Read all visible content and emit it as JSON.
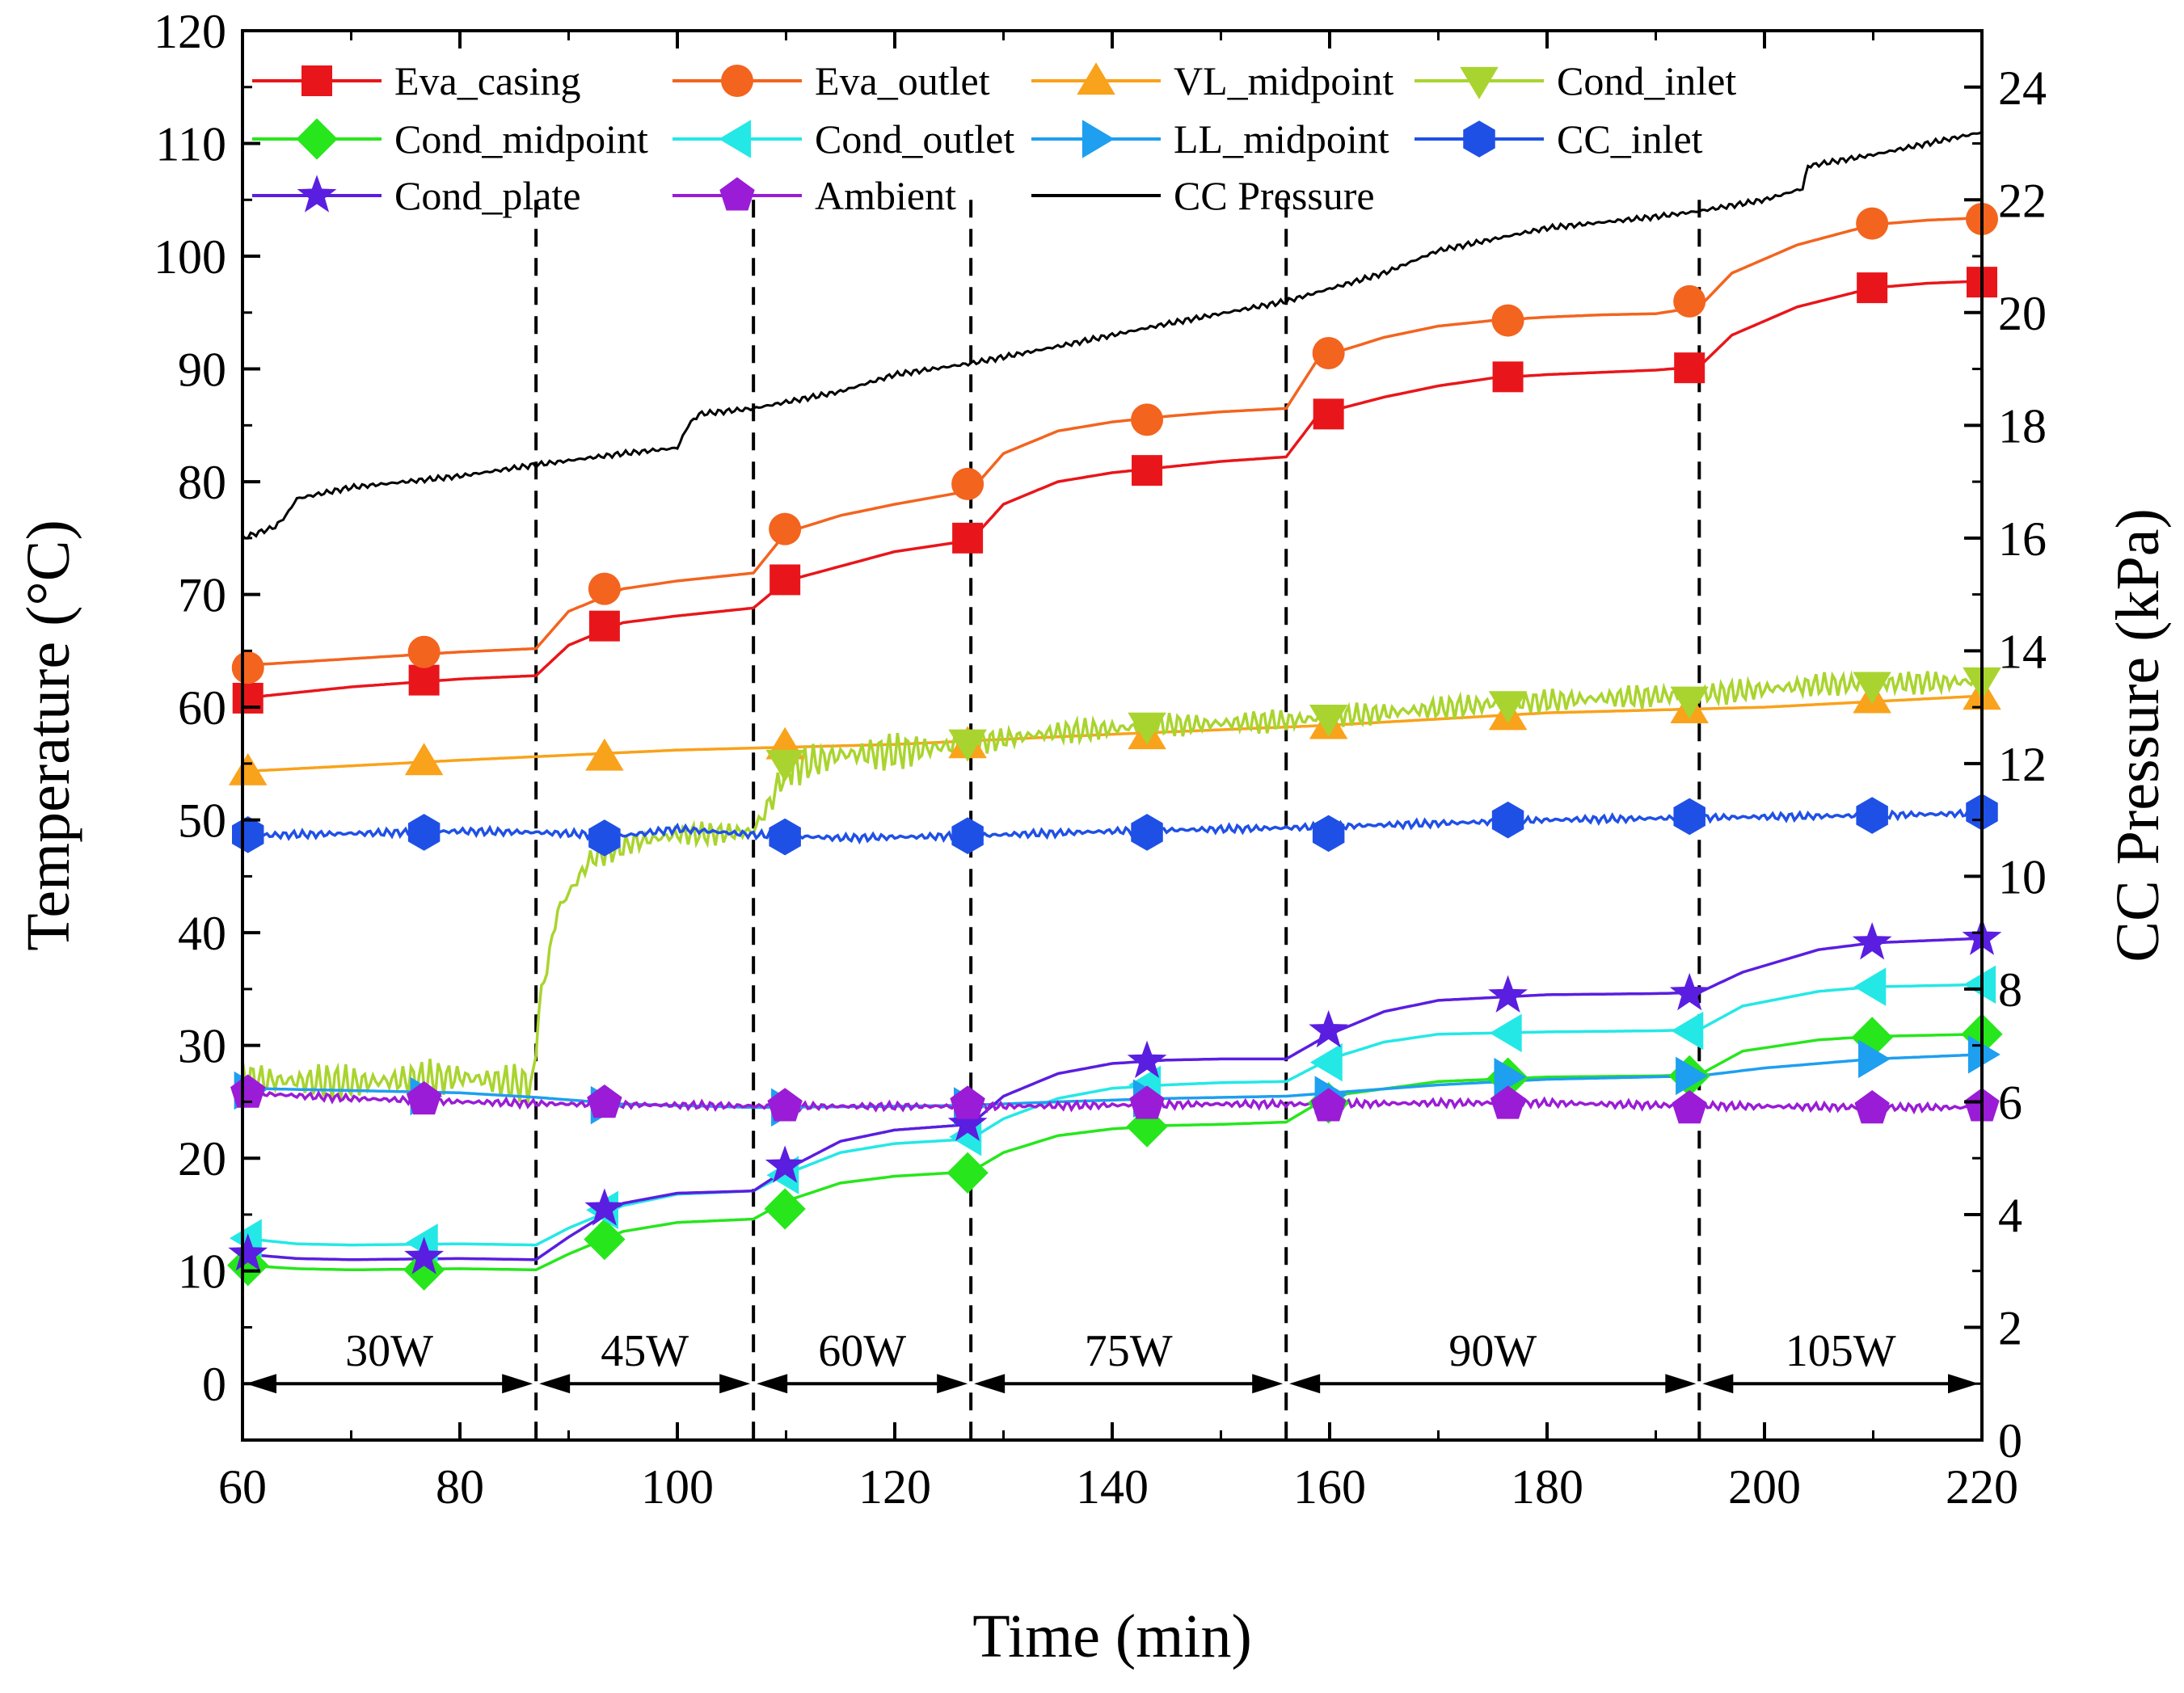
{
  "chart_data": {
    "type": "line",
    "xlabel": "Time (min)",
    "ylabel": "Temperature (°C)",
    "y2label": "CC Pressure (kPa)",
    "xlim": [
      60,
      220
    ],
    "ylim": [
      -5,
      120
    ],
    "y2lim": [
      0,
      25
    ],
    "xticks": [
      60,
      80,
      100,
      120,
      140,
      160,
      180,
      200,
      220
    ],
    "yticks": [
      0,
      10,
      20,
      30,
      40,
      50,
      60,
      70,
      80,
      90,
      100,
      110,
      120
    ],
    "y2ticks": [
      0,
      2,
      4,
      6,
      8,
      10,
      12,
      14,
      16,
      18,
      20,
      22,
      24
    ],
    "grid": false,
    "legend_position": "top",
    "phase_boundaries": [
      87,
      107,
      127,
      156,
      194
    ],
    "phases": [
      {
        "label": "30W",
        "start": 60,
        "end": 87
      },
      {
        "label": "45W",
        "start": 87,
        "end": 107
      },
      {
        "label": "60W",
        "start": 107,
        "end": 127
      },
      {
        "label": "75W",
        "start": 127,
        "end": 156
      },
      {
        "label": "90W",
        "start": 156,
        "end": 194
      },
      {
        "label": "105W",
        "start": 194,
        "end": 220
      }
    ],
    "marker_x": [
      60.5,
      76.7,
      93.3,
      109.9,
      126.7,
      143.2,
      159.9,
      176.4,
      193.1,
      209.9,
      220
    ],
    "series": [
      {
        "name": "Eva_casing",
        "color": "#e8161b",
        "marker": "square",
        "axis": "left",
        "x": [
          60,
          70,
          80,
          87,
          90,
          95,
          100,
          107,
          110,
          115,
          120,
          127,
          130,
          135,
          140,
          145,
          150,
          156,
          159,
          165,
          170,
          175,
          180,
          185,
          190,
          194,
          197,
          203,
          210,
          215,
          220
        ],
        "y": [
          60.8,
          61.8,
          62.5,
          62.8,
          65.5,
          67.5,
          68.1,
          68.8,
          71.2,
          72.5,
          73.8,
          74.8,
          78.0,
          80.0,
          80.8,
          81.3,
          81.8,
          82.2,
          86.0,
          87.5,
          88.5,
          89.2,
          89.5,
          89.7,
          89.9,
          90.2,
          93.0,
          95.5,
          97.2,
          97.6,
          97.8
        ],
        "marker_y": [
          60.8,
          62.4,
          67.2,
          71.3,
          75.0,
          81.0,
          86.0,
          89.3,
          90.1,
          97.2,
          97.7
        ]
      },
      {
        "name": "Eva_outlet",
        "color": "#f3641f",
        "marker": "circle",
        "axis": "left",
        "x": [
          60,
          70,
          80,
          87,
          90,
          95,
          100,
          107,
          110,
          115,
          120,
          127,
          130,
          135,
          140,
          145,
          150,
          156,
          159,
          165,
          170,
          175,
          180,
          185,
          190,
          194,
          197,
          203,
          210,
          215,
          220
        ],
        "y": [
          63.7,
          64.3,
          64.9,
          65.2,
          68.5,
          70.5,
          71.2,
          71.9,
          75.5,
          77.0,
          78.0,
          79.2,
          82.5,
          84.5,
          85.3,
          85.8,
          86.2,
          86.5,
          91.0,
          92.8,
          93.8,
          94.3,
          94.6,
          94.8,
          94.9,
          95.5,
          98.5,
          101.0,
          102.8,
          103.2,
          103.4
        ],
        "marker_y": [
          63.5,
          64.9,
          70.5,
          75.8,
          79.8,
          85.5,
          91.4,
          94.3,
          96.0,
          102.9,
          103.3
        ]
      },
      {
        "name": "VL_midpoint",
        "color": "#f9a21b",
        "marker": "triangle-up",
        "axis": "left",
        "x": [
          60,
          80,
          100,
          120,
          140,
          160,
          180,
          200,
          220
        ],
        "y": [
          54.3,
          55.3,
          56.2,
          56.7,
          57.6,
          58.4,
          59.5,
          60.0,
          61.0
        ],
        "marker_y": [
          54.3,
          55.2,
          55.6,
          56.6,
          56.7,
          57.5,
          58.4,
          59.2,
          59.8,
          60.7,
          61.0
        ]
      },
      {
        "name": "Cond_inlet",
        "color": "#a9d42f",
        "marker": "triangle-down",
        "axis": "left",
        "x": [
          60,
          70,
          80,
          86.8,
          87.2,
          89,
          92,
          96,
          100,
          104,
          107,
          108.5,
          110,
          115,
          120,
          127,
          135,
          145,
          156,
          165,
          175,
          185,
          195,
          205,
          220
        ],
        "y": [
          27.0,
          26.7,
          27.2,
          26.5,
          33.0,
          42.0,
          46.5,
          48.0,
          48.7,
          48.8,
          49.0,
          51.5,
          54.5,
          55.8,
          56.0,
          56.8,
          57.8,
          58.4,
          58.8,
          59.5,
          60.3,
          60.8,
          61.2,
          62.0,
          62.3
        ],
        "marker_y": [
          null,
          null,
          null,
          55.0,
          56.8,
          58.3,
          59.0,
          60.2,
          60.6,
          61.9,
          62.3
        ]
      },
      {
        "name": "Cond_midpoint",
        "color": "#27e61c",
        "marker": "diamond",
        "axis": "left",
        "x": [
          60,
          65,
          70,
          80,
          87,
          90,
          95,
          100,
          107,
          110,
          115,
          120,
          127,
          130,
          135,
          140,
          145,
          150,
          156,
          160,
          170,
          180,
          190,
          194,
          198,
          205,
          210,
          220
        ],
        "y": [
          10.5,
          10.2,
          10.1,
          10.2,
          10.1,
          11.5,
          13.5,
          14.3,
          14.6,
          16.2,
          17.8,
          18.4,
          18.8,
          20.5,
          22.0,
          22.6,
          22.9,
          23.0,
          23.2,
          25.5,
          26.8,
          27.2,
          27.3,
          27.4,
          29.5,
          30.5,
          30.8,
          31.0
        ],
        "marker_y": [
          10.5,
          10.1,
          12.8,
          15.5,
          18.7,
          22.8,
          24.9,
          27.1,
          27.3,
          30.7,
          31.0
        ]
      },
      {
        "name": "Cond_outlet",
        "color": "#24e8e6",
        "marker": "triangle-left",
        "axis": "left",
        "x": [
          60,
          65,
          70,
          80,
          87,
          90,
          95,
          100,
          107,
          110,
          115,
          120,
          127,
          130,
          135,
          140,
          145,
          150,
          156,
          160,
          165,
          170,
          180,
          190,
          194,
          198,
          205,
          210,
          220
        ],
        "y": [
          12.9,
          12.4,
          12.3,
          12.4,
          12.3,
          13.8,
          15.8,
          16.8,
          17.1,
          18.6,
          20.5,
          21.3,
          21.7,
          23.5,
          25.3,
          26.2,
          26.5,
          26.7,
          26.8,
          28.8,
          30.3,
          31.0,
          31.2,
          31.3,
          31.4,
          33.5,
          34.8,
          35.2,
          35.4
        ],
        "marker_y": [
          12.9,
          12.5,
          15.4,
          18.5,
          21.9,
          26.5,
          28.5,
          31.1,
          31.3,
          35.2,
          35.4
        ]
      },
      {
        "name": "LL_midpoint",
        "color": "#1e9ff0",
        "marker": "triangle-right",
        "axis": "left",
        "x": [
          60,
          70,
          80,
          87,
          95,
          107,
          120,
          127,
          135,
          145,
          156,
          170,
          180,
          194,
          200,
          210,
          220
        ],
        "y": [
          26.2,
          26.0,
          25.8,
          25.4,
          24.8,
          24.5,
          24.6,
          24.7,
          25.0,
          25.3,
          25.5,
          26.5,
          27.0,
          27.3,
          28.0,
          28.8,
          29.2
        ],
        "marker_y": [
          26.0,
          25.5,
          24.7,
          24.5,
          24.6,
          25.3,
          25.6,
          27.2,
          27.3,
          28.8,
          29.2
        ]
      },
      {
        "name": "CC_inlet",
        "color": "#1f50e6",
        "marker": "hexagon",
        "axis": "left",
        "x": [
          60,
          70,
          80,
          87,
          95,
          100,
          107,
          115,
          127,
          140,
          156,
          170,
          180,
          194,
          210,
          220
        ],
        "y": [
          48.6,
          48.8,
          49.0,
          48.9,
          48.6,
          49.2,
          48.7,
          48.4,
          48.6,
          49.0,
          49.3,
          49.7,
          50.0,
          50.2,
          50.4,
          50.6
        ],
        "marker_y": [
          48.7,
          48.9,
          48.4,
          48.5,
          48.6,
          48.9,
          48.8,
          50.0,
          50.3,
          50.4,
          50.7
        ]
      },
      {
        "name": "Cond_plate",
        "color": "#5a1ee0",
        "marker": "star",
        "axis": "left",
        "x": [
          60,
          65,
          70,
          80,
          87,
          90,
          95,
          100,
          107,
          110,
          115,
          120,
          127,
          130,
          135,
          140,
          145,
          150,
          156,
          160,
          165,
          170,
          180,
          190,
          194,
          198,
          205,
          210,
          220
        ],
        "y": [
          11.5,
          11.1,
          11.0,
          11.1,
          11.0,
          13.0,
          16.0,
          16.9,
          17.1,
          19.0,
          21.5,
          22.5,
          23.0,
          25.5,
          27.5,
          28.4,
          28.7,
          28.8,
          28.8,
          31.0,
          33.0,
          34.0,
          34.5,
          34.6,
          34.7,
          36.5,
          38.5,
          39.1,
          39.5
        ],
        "marker_y": [
          11.5,
          11.2,
          15.5,
          19.3,
          23.0,
          28.6,
          31.3,
          34.4,
          34.6,
          39.1,
          39.5
        ]
      },
      {
        "name": "Ambient",
        "color": "#9a1cd6",
        "marker": "pentagon",
        "axis": "left",
        "x": [
          60,
          70,
          80,
          90,
          100,
          110,
          120,
          130,
          140,
          150,
          160,
          170,
          180,
          190,
          200,
          210,
          220
        ],
        "y": [
          25.8,
          25.3,
          25.0,
          24.8,
          24.7,
          24.6,
          24.6,
          24.6,
          24.7,
          24.8,
          24.8,
          24.9,
          24.9,
          24.7,
          24.6,
          24.5,
          24.5
        ],
        "marker_y": [
          25.8,
          25.2,
          24.9,
          24.6,
          24.8,
          24.8,
          24.6,
          24.8,
          24.4,
          24.4,
          24.6
        ]
      },
      {
        "name": "CC Pressure",
        "color": "#000000",
        "marker": "none",
        "axis": "right",
        "x": [
          60,
          61.5,
          63,
          64,
          65,
          70,
          75,
          80,
          87,
          95,
          100,
          101,
          102,
          107,
          115,
          120,
          127,
          135,
          145,
          156,
          165,
          170,
          175,
          180,
          190,
          194,
          200,
          203.5,
          204,
          210,
          220
        ],
        "y": [
          16.0,
          16.1,
          16.2,
          16.4,
          16.7,
          16.9,
          17.0,
          17.1,
          17.3,
          17.5,
          17.6,
          18.0,
          18.2,
          18.3,
          18.6,
          18.9,
          19.1,
          19.4,
          19.8,
          20.2,
          20.7,
          21.1,
          21.3,
          21.5,
          21.7,
          21.8,
          22.0,
          22.2,
          22.6,
          22.8,
          23.2
        ]
      }
    ]
  }
}
